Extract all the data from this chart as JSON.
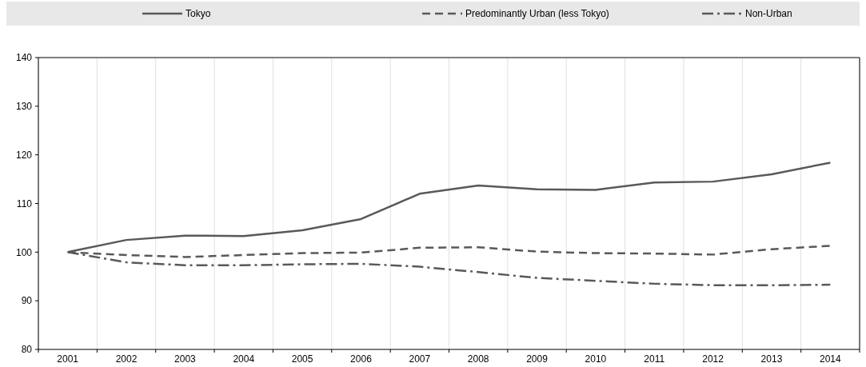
{
  "chart_data": {
    "type": "line",
    "categories": [
      "2001",
      "2002",
      "2003",
      "2004",
      "2005",
      "2006",
      "2007",
      "2008",
      "2009",
      "2010",
      "2011",
      "2012",
      "2013",
      "2014"
    ],
    "series": [
      {
        "name": "Tokyo",
        "color": "#595959",
        "line_style": "solid",
        "values": [
          100,
          102.5,
          103.4,
          103.3,
          104.5,
          106.8,
          112,
          113.7,
          112.9,
          112.8,
          114.3,
          114.5,
          116,
          118.4
        ]
      },
      {
        "name": "Predominantly Urban (less Tokyo)",
        "color": "#595959",
        "line_style": "dashed",
        "values": [
          100,
          99.4,
          99,
          99.4,
          99.8,
          99.9,
          100.9,
          101,
          100.1,
          99.8,
          99.7,
          99.5,
          100.6,
          101.3
        ]
      },
      {
        "name": "Non-Urban",
        "color": "#595959",
        "line_style": "dashdot",
        "values": [
          100,
          97.9,
          97.3,
          97.3,
          97.5,
          97.6,
          97,
          95.9,
          94.7,
          94.1,
          93.5,
          93.2,
          93.2,
          93.3
        ]
      }
    ],
    "ylim": [
      80,
      140
    ],
    "yticks": [
      80,
      90,
      100,
      110,
      120,
      130,
      140
    ],
    "grid": "x",
    "legend": "top",
    "marker": "none"
  }
}
